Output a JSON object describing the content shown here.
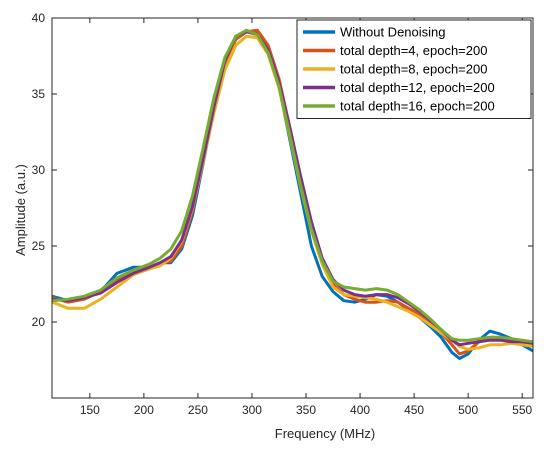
{
  "chart_data": {
    "type": "line",
    "xlabel": "Frequency (MHz)",
    "ylabel": "Amplitude (a.u.)",
    "xlim": [
      115,
      560
    ],
    "ylim": [
      15,
      40
    ],
    "xticks": [
      150,
      200,
      250,
      300,
      350,
      400,
      450,
      500,
      550
    ],
    "yticks": [
      20,
      25,
      30,
      35,
      40
    ],
    "grid": false,
    "legend_position": "top-right",
    "series": [
      {
        "name": "Without Denoising",
        "color": "#0072BD",
        "points": [
          [
            115,
            21.7
          ],
          [
            130,
            21.4
          ],
          [
            145,
            21.6
          ],
          [
            160,
            22.0
          ],
          [
            175,
            23.2
          ],
          [
            190,
            23.6
          ],
          [
            205,
            23.6
          ],
          [
            215,
            23.9
          ],
          [
            225,
            23.9
          ],
          [
            235,
            24.8
          ],
          [
            245,
            27.0
          ],
          [
            255,
            30.5
          ],
          [
            265,
            34.0
          ],
          [
            275,
            37.0
          ],
          [
            285,
            38.6
          ],
          [
            295,
            39.1
          ],
          [
            305,
            39.0
          ],
          [
            315,
            37.8
          ],
          [
            325,
            35.5
          ],
          [
            335,
            32.0
          ],
          [
            345,
            28.5
          ],
          [
            355,
            25.0
          ],
          [
            365,
            23.0
          ],
          [
            375,
            22.0
          ],
          [
            385,
            21.4
          ],
          [
            395,
            21.3
          ],
          [
            405,
            21.5
          ],
          [
            415,
            21.8
          ],
          [
            425,
            21.7
          ],
          [
            435,
            21.3
          ],
          [
            445,
            20.8
          ],
          [
            455,
            20.3
          ],
          [
            465,
            19.7
          ],
          [
            475,
            19.0
          ],
          [
            485,
            18.0
          ],
          [
            492,
            17.6
          ],
          [
            500,
            17.9
          ],
          [
            510,
            18.8
          ],
          [
            520,
            19.4
          ],
          [
            530,
            19.2
          ],
          [
            540,
            18.9
          ],
          [
            550,
            18.5
          ],
          [
            560,
            18.1
          ]
        ]
      },
      {
        "name": "total depth=4, epoch=200",
        "color": "#D95319",
        "points": [
          [
            115,
            21.6
          ],
          [
            130,
            21.3
          ],
          [
            145,
            21.5
          ],
          [
            160,
            22.0
          ],
          [
            175,
            22.8
          ],
          [
            190,
            23.3
          ],
          [
            205,
            23.5
          ],
          [
            215,
            23.8
          ],
          [
            225,
            24.0
          ],
          [
            235,
            25.0
          ],
          [
            245,
            27.3
          ],
          [
            255,
            30.7
          ],
          [
            265,
            34.2
          ],
          [
            275,
            37.0
          ],
          [
            285,
            38.6
          ],
          [
            295,
            39.1
          ],
          [
            305,
            39.2
          ],
          [
            315,
            38.2
          ],
          [
            325,
            36.0
          ],
          [
            335,
            32.8
          ],
          [
            345,
            29.5
          ],
          [
            355,
            26.5
          ],
          [
            365,
            24.0
          ],
          [
            375,
            22.5
          ],
          [
            385,
            21.8
          ],
          [
            395,
            21.5
          ],
          [
            405,
            21.3
          ],
          [
            415,
            21.3
          ],
          [
            425,
            21.4
          ],
          [
            435,
            21.3
          ],
          [
            445,
            20.9
          ],
          [
            455,
            20.5
          ],
          [
            465,
            20.0
          ],
          [
            475,
            19.3
          ],
          [
            485,
            18.5
          ],
          [
            492,
            17.9
          ],
          [
            500,
            18.1
          ],
          [
            510,
            18.7
          ],
          [
            520,
            18.9
          ],
          [
            530,
            18.9
          ],
          [
            540,
            18.8
          ],
          [
            550,
            18.7
          ],
          [
            560,
            18.5
          ]
        ]
      },
      {
        "name": "total depth=8, epoch=200",
        "color": "#EDB120",
        "points": [
          [
            115,
            21.3
          ],
          [
            130,
            20.9
          ],
          [
            145,
            20.9
          ],
          [
            160,
            21.5
          ],
          [
            175,
            22.3
          ],
          [
            190,
            23.1
          ],
          [
            205,
            23.5
          ],
          [
            215,
            23.7
          ],
          [
            225,
            24.2
          ],
          [
            235,
            25.3
          ],
          [
            245,
            27.5
          ],
          [
            255,
            30.6
          ],
          [
            265,
            33.8
          ],
          [
            275,
            36.6
          ],
          [
            285,
            38.2
          ],
          [
            295,
            38.8
          ],
          [
            305,
            38.7
          ],
          [
            315,
            37.6
          ],
          [
            325,
            35.4
          ],
          [
            335,
            32.2
          ],
          [
            345,
            28.9
          ],
          [
            355,
            26.0
          ],
          [
            365,
            23.8
          ],
          [
            375,
            22.3
          ],
          [
            385,
            21.8
          ],
          [
            395,
            21.7
          ],
          [
            405,
            21.6
          ],
          [
            415,
            21.5
          ],
          [
            425,
            21.3
          ],
          [
            435,
            21.0
          ],
          [
            445,
            20.7
          ],
          [
            455,
            20.3
          ],
          [
            465,
            19.8
          ],
          [
            475,
            19.3
          ],
          [
            485,
            18.8
          ],
          [
            492,
            18.4
          ],
          [
            500,
            18.2
          ],
          [
            510,
            18.3
          ],
          [
            520,
            18.5
          ],
          [
            530,
            18.5
          ],
          [
            540,
            18.6
          ],
          [
            550,
            18.5
          ],
          [
            560,
            18.4
          ]
        ]
      },
      {
        "name": "total depth=12, epoch=200",
        "color": "#7E2F8E",
        "points": [
          [
            115,
            21.5
          ],
          [
            130,
            21.4
          ],
          [
            145,
            21.6
          ],
          [
            160,
            21.9
          ],
          [
            175,
            22.6
          ],
          [
            190,
            23.2
          ],
          [
            205,
            23.6
          ],
          [
            215,
            23.9
          ],
          [
            225,
            24.3
          ],
          [
            235,
            25.4
          ],
          [
            245,
            27.6
          ],
          [
            255,
            30.8
          ],
          [
            265,
            34.2
          ],
          [
            275,
            37.2
          ],
          [
            285,
            38.8
          ],
          [
            295,
            39.1
          ],
          [
            305,
            38.9
          ],
          [
            315,
            37.9
          ],
          [
            325,
            35.8
          ],
          [
            335,
            32.8
          ],
          [
            345,
            29.6
          ],
          [
            355,
            26.6
          ],
          [
            365,
            24.2
          ],
          [
            375,
            22.8
          ],
          [
            385,
            22.1
          ],
          [
            395,
            21.8
          ],
          [
            405,
            21.7
          ],
          [
            415,
            21.8
          ],
          [
            425,
            21.8
          ],
          [
            435,
            21.6
          ],
          [
            445,
            21.2
          ],
          [
            455,
            20.7
          ],
          [
            465,
            20.1
          ],
          [
            475,
            19.5
          ],
          [
            485,
            18.8
          ],
          [
            492,
            18.5
          ],
          [
            500,
            18.6
          ],
          [
            510,
            18.7
          ],
          [
            520,
            18.8
          ],
          [
            530,
            18.8
          ],
          [
            540,
            18.7
          ],
          [
            550,
            18.7
          ],
          [
            560,
            18.6
          ]
        ]
      },
      {
        "name": "total depth=16, epoch=200",
        "color": "#77AC30",
        "points": [
          [
            115,
            21.4
          ],
          [
            130,
            21.5
          ],
          [
            145,
            21.7
          ],
          [
            160,
            22.1
          ],
          [
            175,
            22.9
          ],
          [
            190,
            23.4
          ],
          [
            205,
            23.8
          ],
          [
            215,
            24.2
          ],
          [
            225,
            24.8
          ],
          [
            235,
            26.0
          ],
          [
            245,
            28.3
          ],
          [
            255,
            31.5
          ],
          [
            265,
            34.8
          ],
          [
            275,
            37.4
          ],
          [
            285,
            38.8
          ],
          [
            295,
            39.2
          ],
          [
            305,
            38.9
          ],
          [
            315,
            37.7
          ],
          [
            325,
            35.5
          ],
          [
            335,
            32.3
          ],
          [
            345,
            29.0
          ],
          [
            355,
            26.1
          ],
          [
            365,
            24.0
          ],
          [
            375,
            22.7
          ],
          [
            385,
            22.3
          ],
          [
            395,
            22.2
          ],
          [
            405,
            22.1
          ],
          [
            415,
            22.2
          ],
          [
            425,
            22.1
          ],
          [
            435,
            21.8
          ],
          [
            445,
            21.3
          ],
          [
            455,
            20.8
          ],
          [
            465,
            20.2
          ],
          [
            475,
            19.5
          ],
          [
            485,
            18.9
          ],
          [
            492,
            18.8
          ],
          [
            500,
            18.8
          ],
          [
            510,
            18.9
          ],
          [
            520,
            19.0
          ],
          [
            530,
            19.0
          ],
          [
            540,
            18.9
          ],
          [
            550,
            18.8
          ],
          [
            560,
            18.7
          ]
        ]
      }
    ]
  }
}
